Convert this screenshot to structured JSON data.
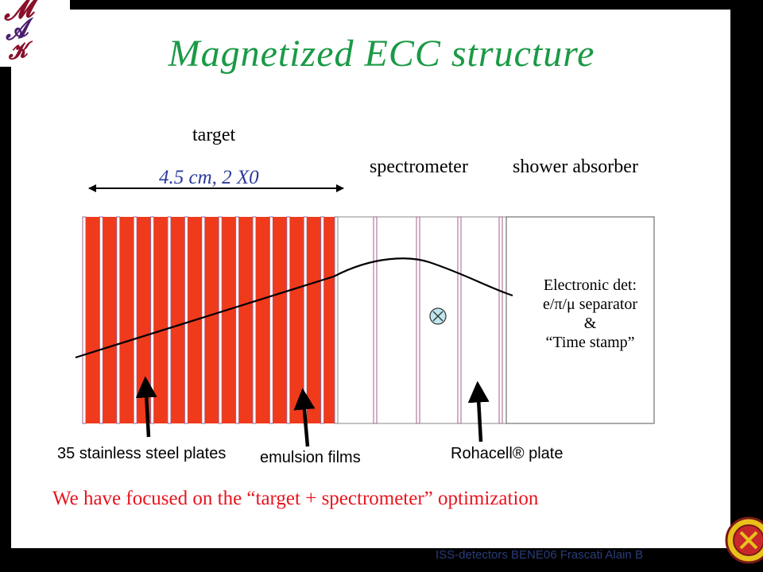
{
  "title": "Magnetized ECC structure",
  "labels": {
    "target": "target",
    "dimension": "4.5 cm, 2 X0",
    "spectrometer": "spectrometer",
    "shower_absorber": "shower absorber",
    "steel_plates": "35 stainless steel plates",
    "emulsion_films": "emulsion films",
    "rohacell": "Rohacell® plate",
    "magnetic_field_symbol": "X"
  },
  "electronic_detector": {
    "line1": "Electronic det:",
    "line2": "e/π/μ separator",
    "line3": "&",
    "line4": "“Time stamp”"
  },
  "bottom_text": "We have focused on the “target + spectrometer” optimization",
  "footer": "ISS-detectors  BENE06 Frascati     Alain B",
  "colors": {
    "title": "#1a9a45",
    "steel_plate": "#f03a1c",
    "emulsion_outline": "#a0608a",
    "dimension_text": "#2b3b9a",
    "conclusion_text": "#e8141e",
    "field_symbol_fill": "#bfe6ee"
  },
  "icons": {
    "top_left_logo": "university-logo-icon",
    "bottom_right_seal": "university-seal-icon"
  }
}
